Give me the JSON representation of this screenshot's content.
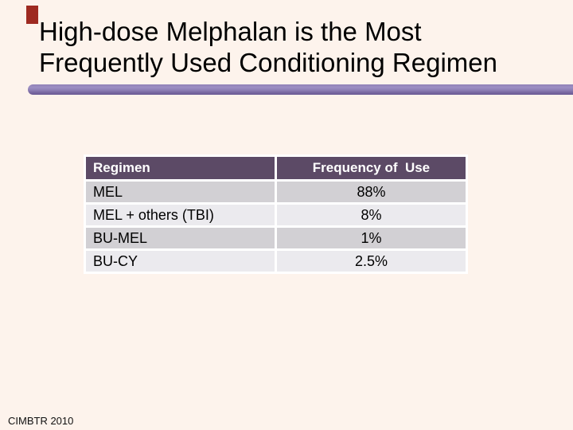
{
  "slide": {
    "title_line1": "High-dose Melphalan is the Most",
    "title_line2": "Frequently Used Conditioning Regimen",
    "footer": "CIMBTR 2010"
  },
  "table": {
    "headers": [
      "Regimen",
      "Frequency of  Use"
    ],
    "rows": [
      {
        "regimen": "MEL",
        "frequency": "88%"
      },
      {
        "regimen": "MEL + others (TBI)",
        "frequency": "8%"
      },
      {
        "regimen": "BU-MEL",
        "frequency": "1%"
      },
      {
        "regimen": "BU-CY",
        "frequency": "2.5%"
      }
    ]
  },
  "chart_data": {
    "type": "table",
    "title": "High-dose Melphalan is the Most Frequently Used Conditioning Regimen",
    "columns": [
      "Regimen",
      "Frequency of Use"
    ],
    "categories": [
      "MEL",
      "MEL + others (TBI)",
      "BU-MEL",
      "BU-CY"
    ],
    "values_percent": [
      88,
      8,
      1,
      2.5
    ],
    "source": "CIMBTR 2010"
  },
  "colors": {
    "background": "#fdf3ec",
    "accent_red": "#9e2a21",
    "divider_purple": "#8d7eb5",
    "table_header_bg": "#5c4a66",
    "table_header_text": "#ffffff",
    "row_gray": "#d2d0d4",
    "row_light": "#ebeaee"
  }
}
